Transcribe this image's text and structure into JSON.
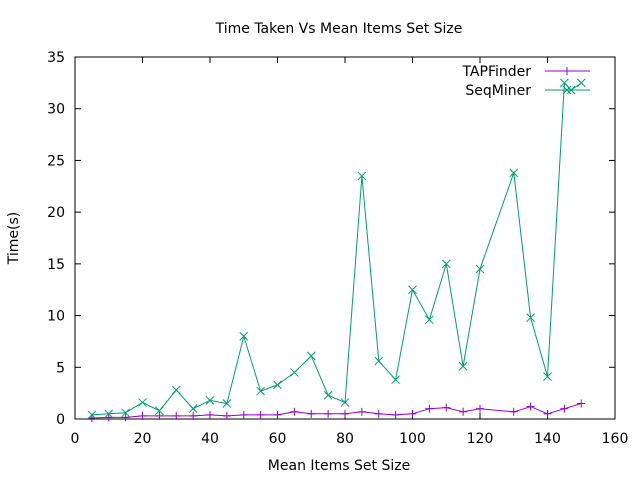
{
  "chart_data": {
    "type": "line",
    "title": "Time Taken Vs Mean Items Set Size",
    "xlabel": "Mean Items Set Size",
    "ylabel": "Time(s)",
    "xlim": [
      0,
      160
    ],
    "ylim": [
      0,
      35
    ],
    "xticks": [
      0,
      20,
      40,
      60,
      80,
      100,
      120,
      140,
      160
    ],
    "yticks": [
      0,
      5,
      10,
      15,
      20,
      25,
      30,
      35
    ],
    "grid": false,
    "legend_position": "top-right",
    "series": [
      {
        "name": "TAPFinder",
        "color": "#9400d3",
        "marker": "plus",
        "points": [
          [
            5,
            0.1
          ],
          [
            10,
            0.15
          ],
          [
            15,
            0.15
          ],
          [
            20,
            0.3
          ],
          [
            25,
            0.3
          ],
          [
            30,
            0.3
          ],
          [
            35,
            0.3
          ],
          [
            40,
            0.4
          ],
          [
            45,
            0.3
          ],
          [
            50,
            0.4
          ],
          [
            55,
            0.4
          ],
          [
            60,
            0.4
          ],
          [
            65,
            0.7
          ],
          [
            70,
            0.5
          ],
          [
            75,
            0.5
          ],
          [
            80,
            0.5
          ],
          [
            85,
            0.7
          ],
          [
            90,
            0.5
          ],
          [
            95,
            0.4
          ],
          [
            100,
            0.5
          ],
          [
            105,
            1.0
          ],
          [
            110,
            1.1
          ],
          [
            115,
            0.7
          ],
          [
            120,
            1.0
          ],
          [
            130,
            0.7
          ],
          [
            135,
            1.2
          ],
          [
            140,
            0.5
          ],
          [
            145,
            1.0
          ],
          [
            150,
            1.5
          ]
        ]
      },
      {
        "name": "SeqMiner",
        "color": "#009e73",
        "marker": "cross",
        "points": [
          [
            5,
            0.4
          ],
          [
            10,
            0.5
          ],
          [
            15,
            0.6
          ],
          [
            20,
            1.6
          ],
          [
            25,
            0.8
          ],
          [
            30,
            2.8
          ],
          [
            35,
            1.0
          ],
          [
            40,
            1.8
          ],
          [
            45,
            1.5
          ],
          [
            50,
            8.0
          ],
          [
            55,
            2.7
          ],
          [
            60,
            3.3
          ],
          [
            65,
            4.5
          ],
          [
            70,
            6.1
          ],
          [
            75,
            2.3
          ],
          [
            80,
            1.6
          ],
          [
            85,
            23.5
          ],
          [
            90,
            5.6
          ],
          [
            95,
            3.8
          ],
          [
            100,
            12.5
          ],
          [
            105,
            9.6
          ],
          [
            110,
            15.0
          ],
          [
            115,
            5.1
          ],
          [
            120,
            14.5
          ],
          [
            130,
            23.8
          ],
          [
            135,
            9.8
          ],
          [
            140,
            4.1
          ],
          [
            145,
            32.5
          ],
          [
            147,
            31.8
          ],
          [
            150,
            32.5
          ]
        ]
      }
    ]
  }
}
